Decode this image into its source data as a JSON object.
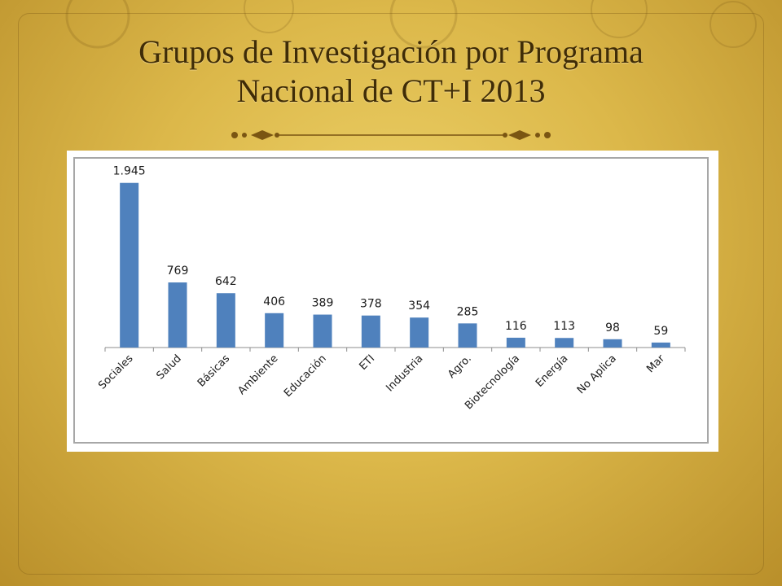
{
  "slide": {
    "title_line1": "Grupos de Investigación por Programa",
    "title_line2": "Nacional de CT+I  2013"
  },
  "colors": {
    "bar": "#4f81bd",
    "title": "#3f2c07"
  },
  "chart_data": {
    "type": "bar",
    "categories": [
      "Sociales",
      "Salud",
      "Básicas",
      "Ambiente",
      "Educación",
      "ETI",
      "Industria",
      "Agro.",
      "Biotecnología",
      "Energía",
      "No Aplica",
      "Mar"
    ],
    "values": [
      1945,
      769,
      642,
      406,
      389,
      378,
      354,
      285,
      116,
      113,
      98,
      59
    ],
    "value_labels": [
      "1.945",
      "769",
      "642",
      "406",
      "389",
      "378",
      "354",
      "285",
      "116",
      "113",
      "98",
      "59"
    ],
    "title": "",
    "xlabel": "",
    "ylabel": "",
    "ylim": [
      0,
      2000
    ],
    "grid": false,
    "legend": "none"
  }
}
